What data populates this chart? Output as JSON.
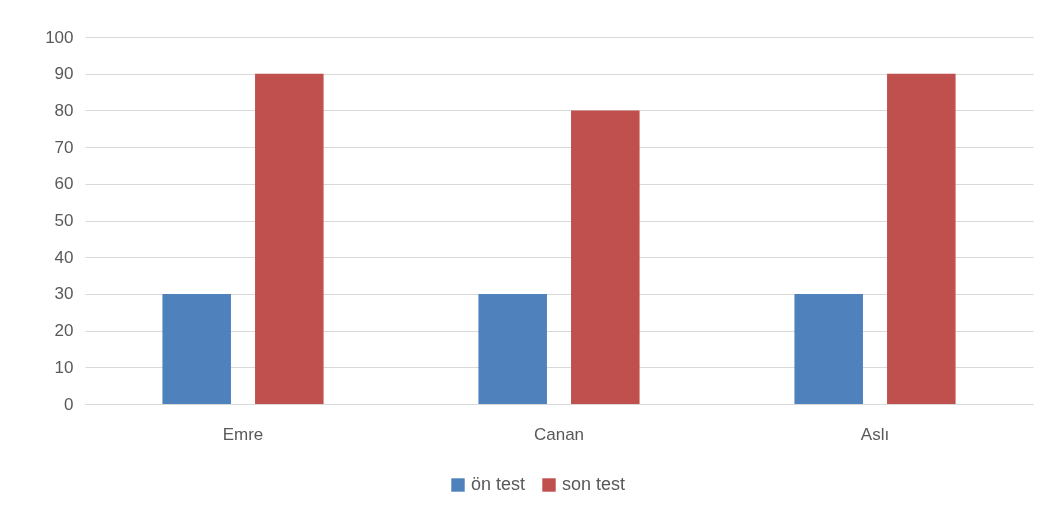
{
  "chart_data": {
    "type": "bar",
    "categories": [
      "Emre",
      "Canan",
      "Aslı"
    ],
    "series": [
      {
        "name": "ön test",
        "color": "#4f81bd",
        "values": [
          30,
          30,
          30
        ]
      },
      {
        "name": "son test",
        "color": "#c0504d",
        "values": [
          90,
          80,
          90
        ]
      }
    ],
    "ylim": [
      0,
      100
    ],
    "yticks": [
      0,
      10,
      20,
      30,
      40,
      50,
      60,
      70,
      80,
      90,
      100
    ],
    "grid": "y",
    "legend": "bottom"
  }
}
